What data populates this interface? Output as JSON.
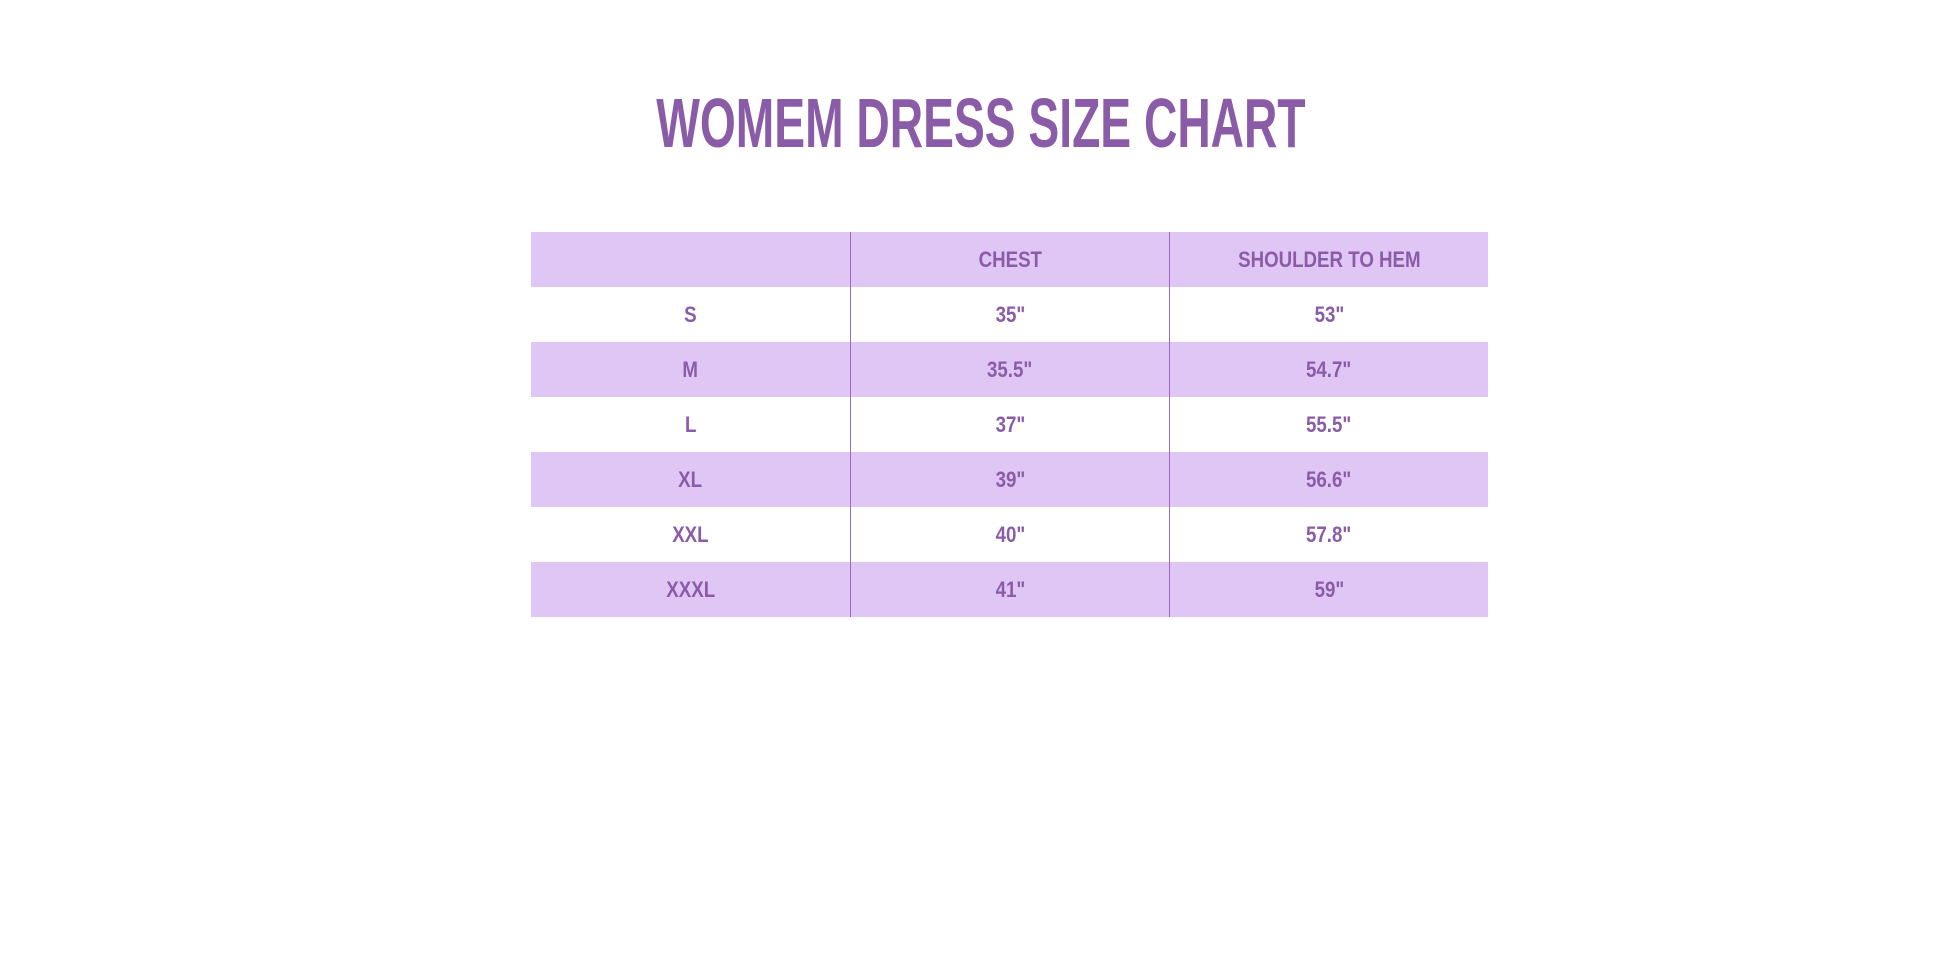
{
  "title": "WOMEM DRESS SIZE CHART",
  "colors": {
    "accent": "#8a5ca8",
    "row_fill": "#e0c6f5",
    "divider": "#9a6abf"
  },
  "table": {
    "headers": [
      "",
      "CHEST",
      "SHOULDER TO HEM"
    ],
    "rows": [
      [
        "S",
        "35\"",
        "53\""
      ],
      [
        "M",
        "35.5\"",
        "54.7\""
      ],
      [
        "L",
        "37\"",
        "55.5\""
      ],
      [
        "XL",
        "39\"",
        "56.6\""
      ],
      [
        "XXL",
        "40\"",
        "57.8\""
      ],
      [
        "XXXL",
        "41\"",
        "59\""
      ]
    ]
  }
}
